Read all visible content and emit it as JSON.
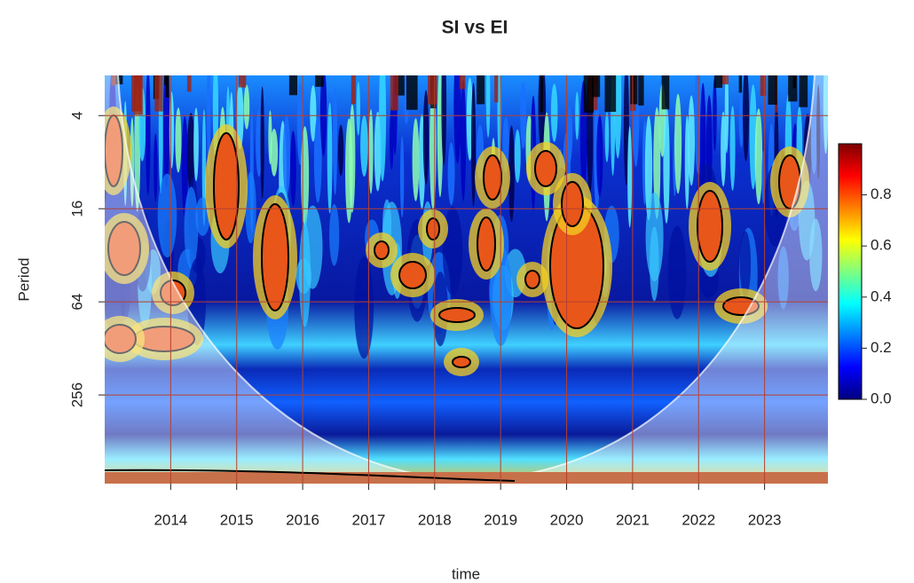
{
  "chart_data": {
    "type": "heatmap",
    "title": "SI vs EI",
    "x_label": "time",
    "y_label": "Period",
    "xlim": [
      2013,
      2023.96
    ],
    "xticks": [
      2014,
      2015,
      2016,
      2017,
      2018,
      2019,
      2020,
      2021,
      2022,
      2023
    ],
    "ylim": [
      2.2,
      958
    ],
    "yticks": [
      4,
      16,
      64,
      256
    ],
    "y_log": true,
    "y_reversed": true,
    "grid": true,
    "grid_color": "#b5402e",
    "colorbar": {
      "zlim": [
        0,
        1.0
      ],
      "ticks": [
        {
          "value": 0,
          "label": "0.0"
        },
        0.2,
        0.4,
        0.6,
        0.8
      ],
      "colors": [
        "#00007f",
        "#0000ff",
        "#007fff",
        "#00ffff",
        "#7fff7f",
        "#ffff00",
        "#ff7f00",
        "#ff0000",
        "#7f0000"
      ]
    }
  }
}
